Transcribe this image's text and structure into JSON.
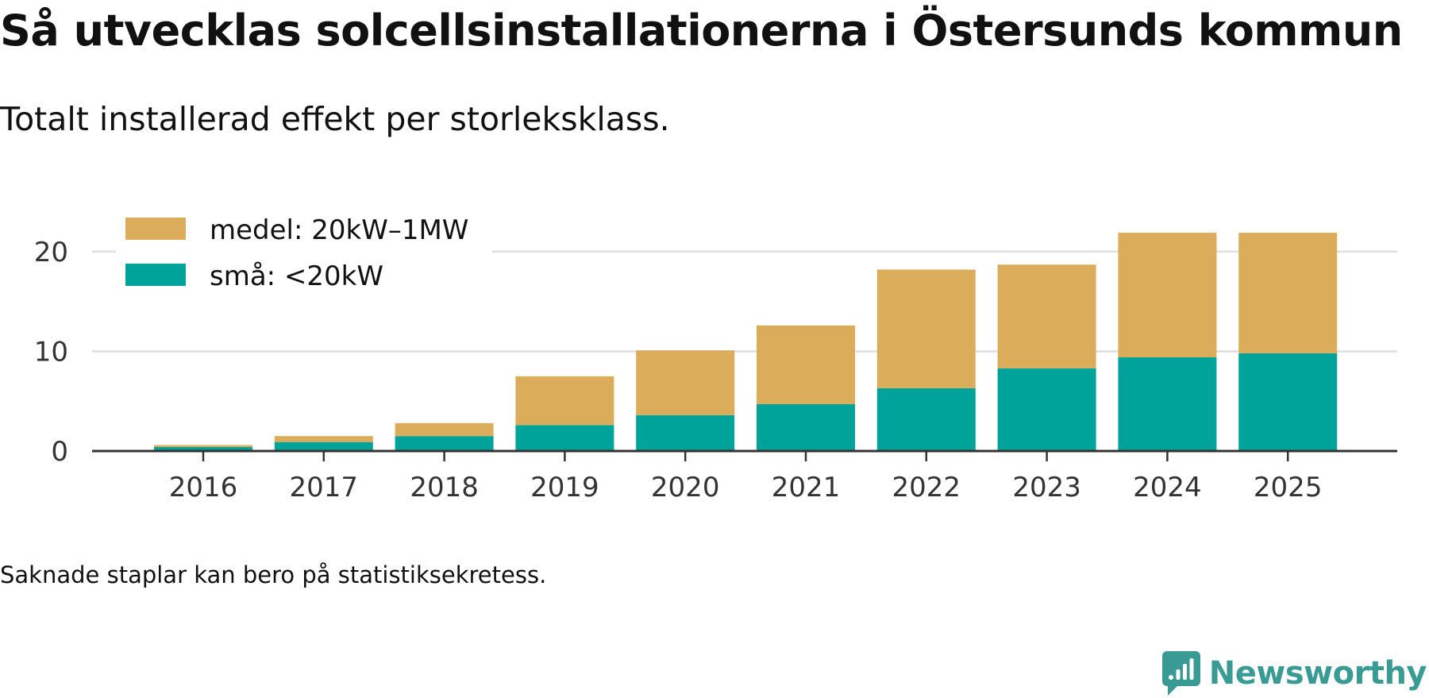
{
  "title": "Så utvecklas solcellsinstallationerna i Östersunds kommun",
  "subtitle": "Totalt installerad effekt per storleksklass.",
  "footnote": "Saknade staplar kan bero på statistiksekretess.",
  "brand": {
    "name": "Newsworthy",
    "icon": "newsworthy-logo-icon",
    "color": "#3a9a94"
  },
  "chart_data": {
    "type": "bar",
    "stacked": true,
    "title": "",
    "xlabel": "",
    "ylabel": "",
    "categories": [
      "2016",
      "2017",
      "2018",
      "2019",
      "2020",
      "2021",
      "2022",
      "2023",
      "2024",
      "2025"
    ],
    "series": [
      {
        "name": "små: <20kW",
        "color": "#00a39a",
        "values": [
          0.4,
          0.9,
          1.5,
          2.6,
          3.6,
          4.7,
          6.3,
          8.3,
          9.4,
          9.8
        ]
      },
      {
        "name": "medel: 20kW–1MW",
        "color": "#dbad5a",
        "values": [
          0.2,
          0.6,
          1.3,
          4.9,
          6.5,
          7.9,
          11.9,
          10.4,
          12.5,
          12.1
        ]
      }
    ],
    "legend_order": [
      "medel: 20kW–1MW",
      "små: <20kW"
    ],
    "yticks": [
      0,
      10,
      20
    ],
    "ylim": [
      0,
      23.5
    ],
    "grid": true,
    "legend_position": "top-left"
  }
}
